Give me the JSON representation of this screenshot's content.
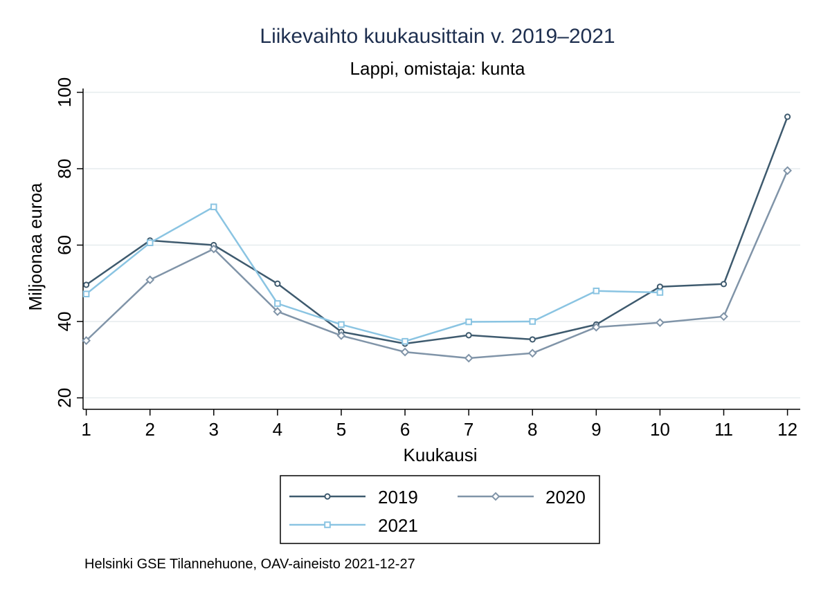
{
  "chart_data": {
    "type": "line",
    "title": "Liikevaihto kuukausittain v. 2019–2021",
    "subtitle": "Lappi, omistaja: kunta",
    "xlabel": "Kuukausi",
    "ylabel": "Miljoonaa euroa",
    "x": [
      1,
      2,
      3,
      4,
      5,
      6,
      7,
      8,
      9,
      10,
      11,
      12
    ],
    "xlim": [
      0.95,
      12.2
    ],
    "ylim": [
      17,
      101
    ],
    "yticks": [
      20,
      40,
      60,
      80,
      100
    ],
    "grid": "horizontal",
    "legend_position": "bottom",
    "series": [
      {
        "name": "2019",
        "color": "#3e5a6e",
        "marker": "circle",
        "values": [
          49.6,
          61.2,
          60.0,
          49.9,
          37.3,
          34.2,
          36.4,
          35.3,
          39.2,
          49.1,
          49.8,
          93.6
        ]
      },
      {
        "name": "2020",
        "color": "#8094a8",
        "marker": "diamond",
        "values": [
          35.0,
          50.9,
          59.0,
          42.6,
          36.3,
          32.0,
          30.4,
          31.7,
          38.5,
          39.7,
          41.3,
          79.5
        ]
      },
      {
        "name": "2021",
        "color": "#8ac4e2",
        "marker": "square",
        "values": [
          47.2,
          60.6,
          70.0,
          44.7,
          39.2,
          34.8,
          39.9,
          40.0,
          48.0,
          47.6,
          null,
          null
        ]
      }
    ],
    "note": "Helsinki GSE Tilannehuone, OAV-aineisto 2021-12-27"
  }
}
